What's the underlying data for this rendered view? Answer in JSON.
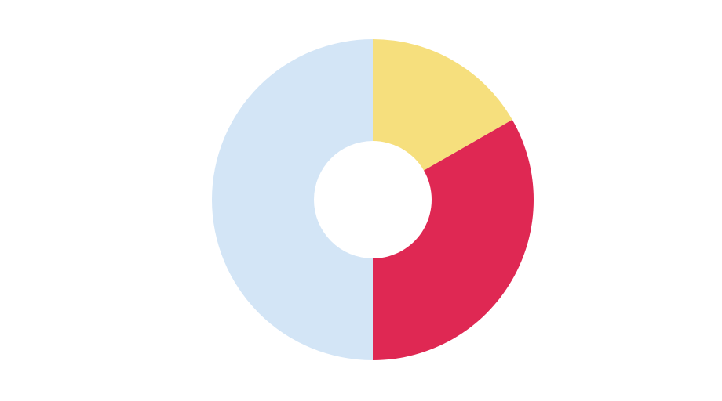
{
  "chart_data": {
    "type": "pie",
    "variant": "donut",
    "start_angle_deg": 0,
    "direction": "clockwise",
    "slices": [
      {
        "value": 16.7,
        "color": "#F6DF7D"
      },
      {
        "value": 33.3,
        "color": "#DF2853"
      },
      {
        "value": 50.0,
        "color": "#D3E5F6"
      }
    ],
    "background": "#FFFFFF",
    "legend": "none"
  }
}
